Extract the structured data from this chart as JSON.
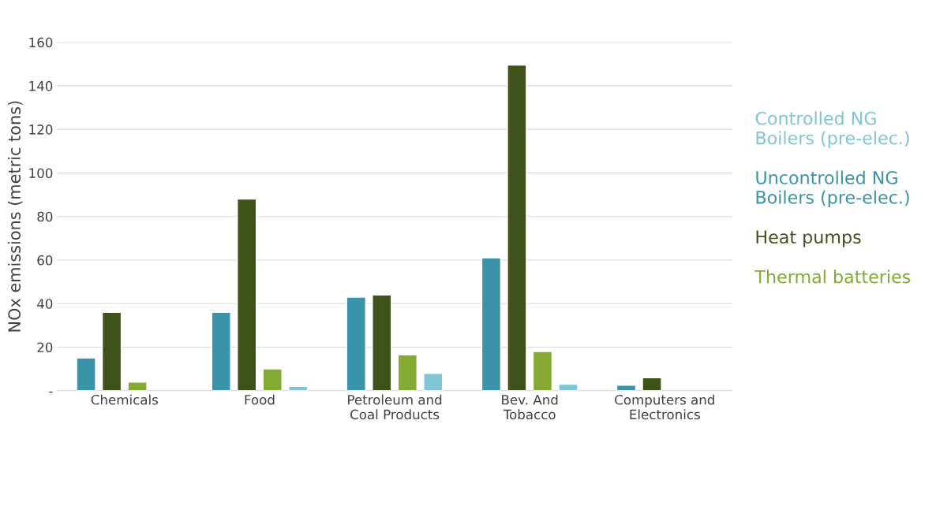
{
  "chart_data": {
    "type": "bar",
    "ylabel": "NOx emissions (metric tons)",
    "categories": [
      "Chemicals",
      "Food",
      "Petroleum and\nCoal Products",
      "Bev. And\nTobacco",
      "Computers and\nElectronics"
    ],
    "series": [
      {
        "name": "Uncontrolled NG\nBoilers (pre-elec.)",
        "color": "#3a93a8",
        "values": [
          15,
          36,
          43,
          61,
          2.5
        ]
      },
      {
        "name": "Heat pumps",
        "color": "#3f5219",
        "values": [
          36,
          88,
          44,
          149.5,
          6
        ]
      },
      {
        "name": "Thermal batteries",
        "color": "#84aa34",
        "values": [
          4,
          10,
          16.5,
          18,
          null
        ]
      },
      {
        "name": "Controlled NG\nBoilers (pre-elec.)",
        "color": "#7fc5d6",
        "values": [
          null,
          2,
          8,
          3,
          null
        ]
      }
    ],
    "ylim": [
      0,
      160
    ],
    "yticks": [
      {
        "value": 0,
        "label": "-"
      },
      20,
      40,
      60,
      80,
      100,
      120,
      140,
      160
    ],
    "grid": "y",
    "legend": "right"
  }
}
